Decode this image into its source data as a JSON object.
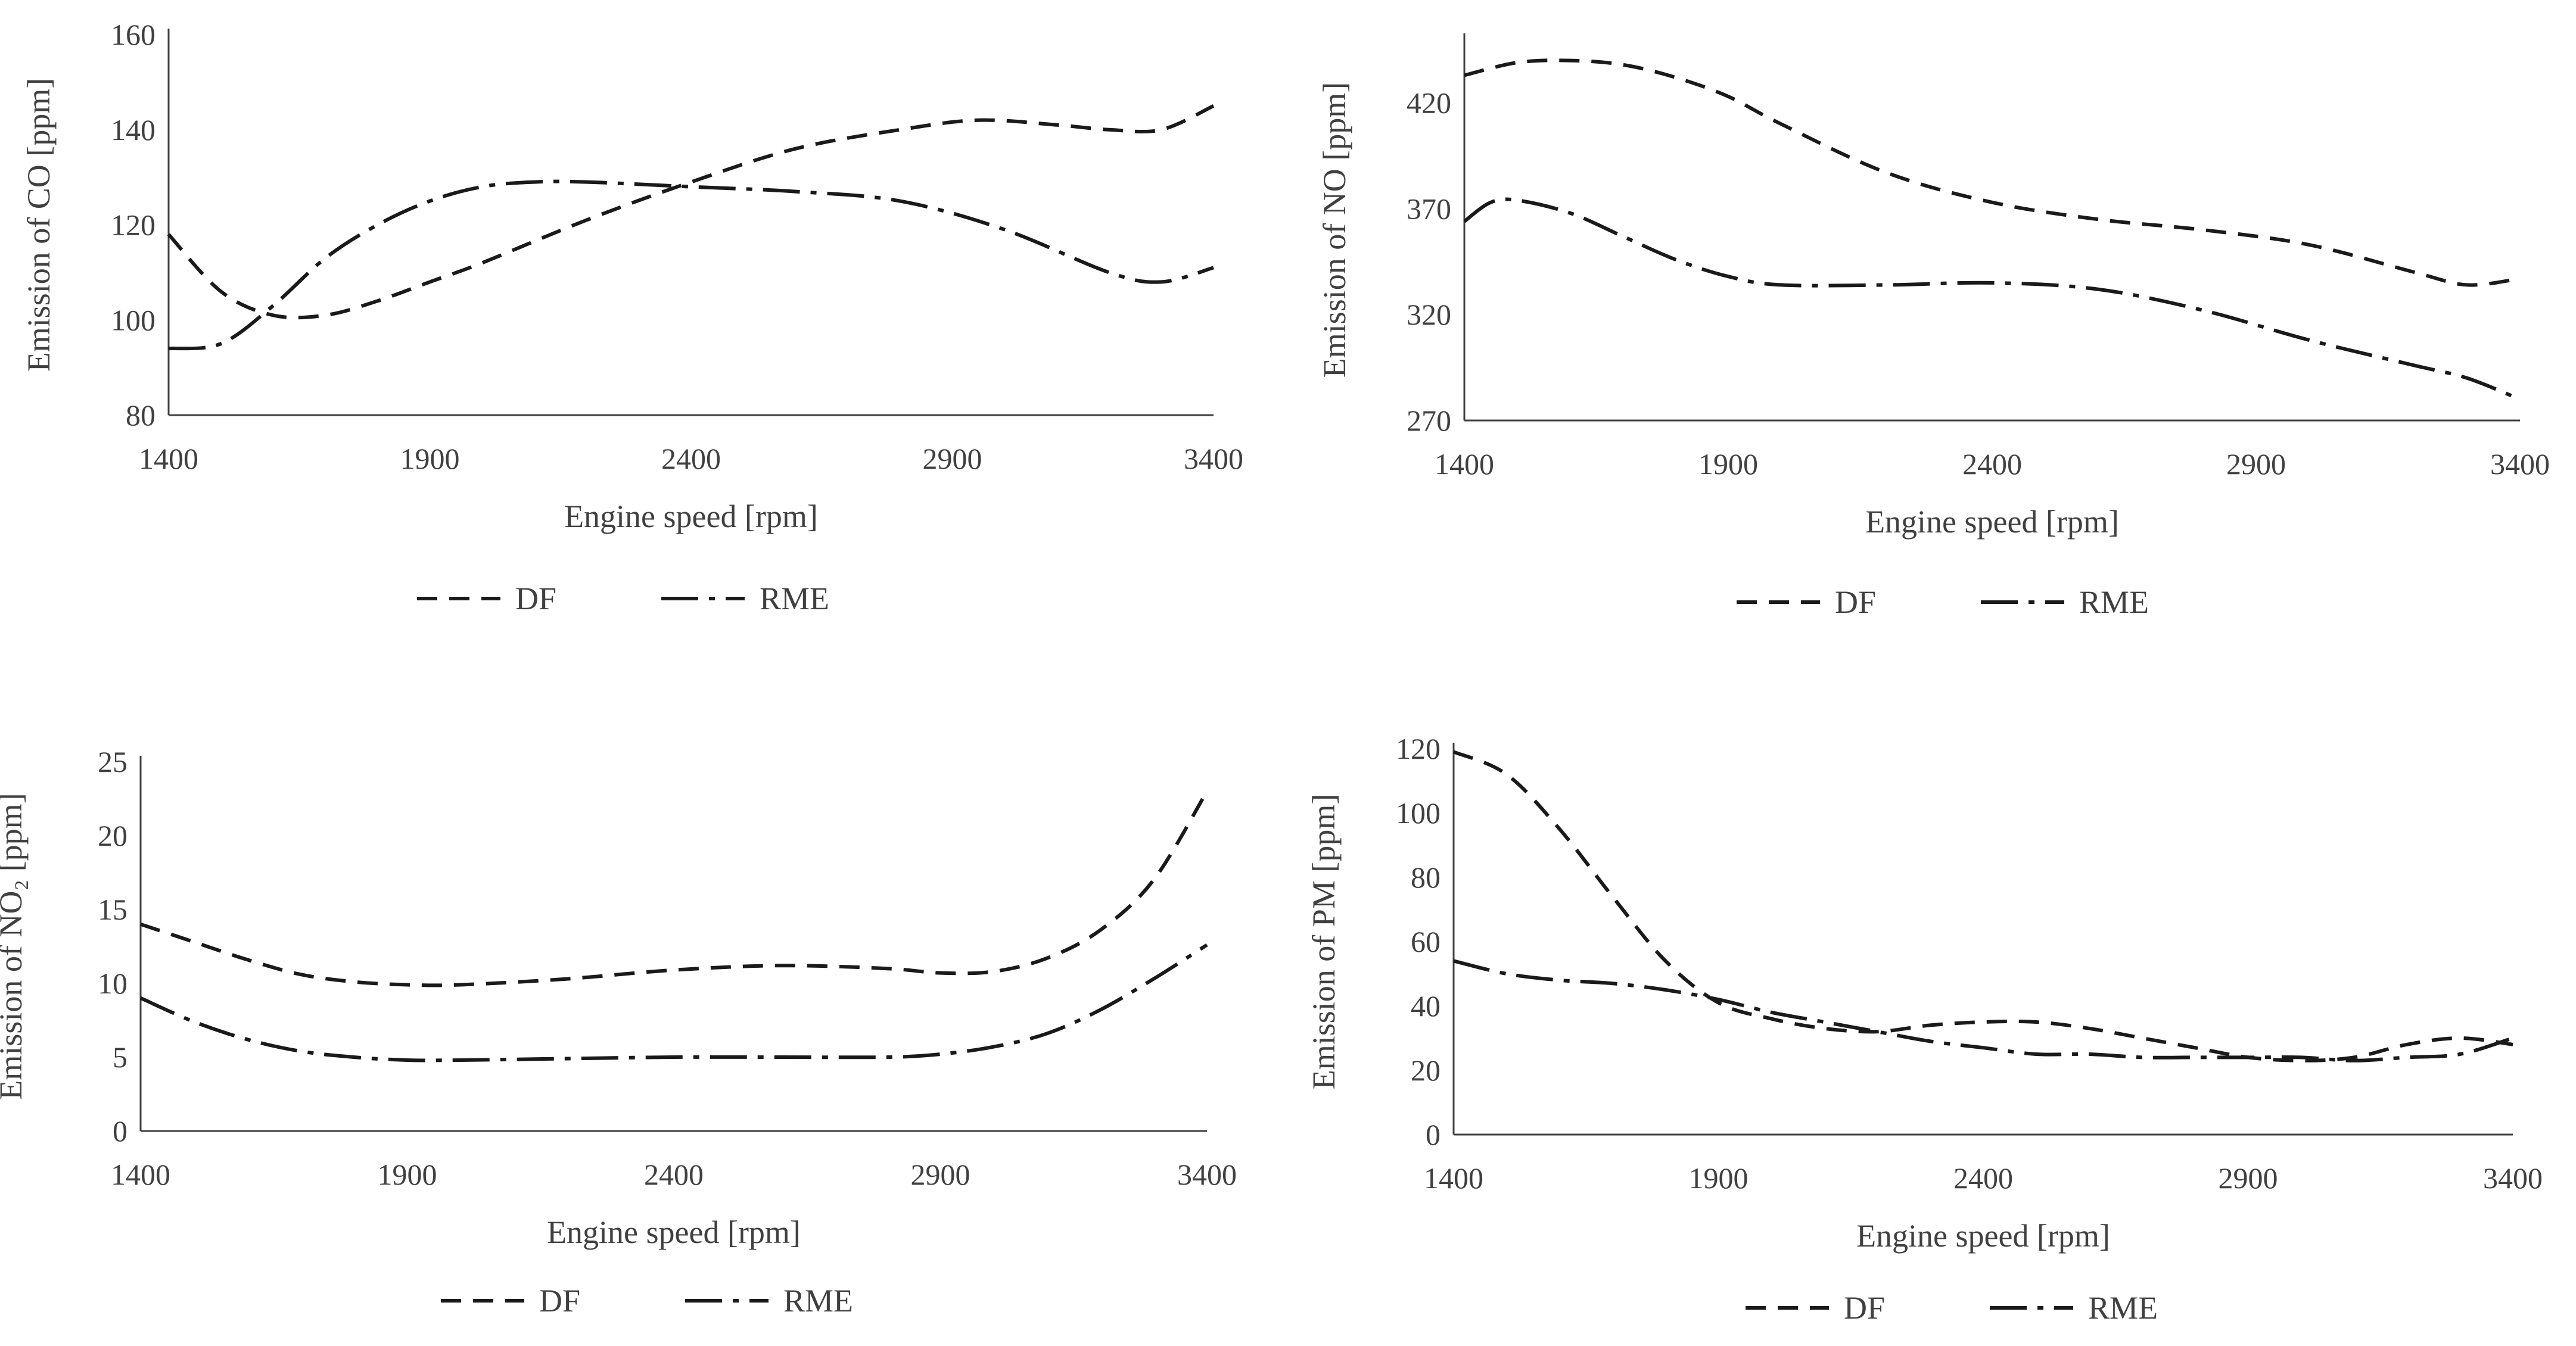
{
  "chart_data": [
    {
      "id": "co",
      "type": "line",
      "ylabel": "Emission of CO [ppm]",
      "xlabel": "Engine speed [rpm]",
      "xlim": [
        1400,
        3400
      ],
      "ylim": [
        80,
        160
      ],
      "xticks": [
        1400,
        1900,
        2400,
        2900,
        3400
      ],
      "yticks": [
        80,
        100,
        120,
        140,
        160
      ],
      "series": [
        {
          "name": "DF",
          "x": [
            1400,
            1500,
            1600,
            1700,
            1800,
            1900,
            2000,
            2200,
            2400,
            2600,
            2800,
            2950,
            3100,
            3200,
            3300,
            3400
          ],
          "values": [
            118,
            106,
            101,
            101,
            104,
            108,
            112,
            121,
            129,
            136,
            140,
            142,
            141,
            140,
            140,
            145
          ]
        },
        {
          "name": "RME",
          "x": [
            1400,
            1500,
            1600,
            1700,
            1800,
            1900,
            2000,
            2100,
            2200,
            2400,
            2600,
            2800,
            3000,
            3200,
            3300,
            3400
          ],
          "values": [
            94,
            95,
            103,
            113,
            120,
            125,
            128,
            129,
            129,
            128,
            127,
            125,
            119,
            110,
            108,
            111
          ]
        }
      ]
    },
    {
      "id": "no",
      "type": "line",
      "ylabel": "Emission of NO [ppm]",
      "xlabel": "Engine speed [rpm]",
      "xlim": [
        1400,
        3400
      ],
      "ylim": [
        270,
        450
      ],
      "xticks": [
        1400,
        1900,
        2400,
        2900,
        3400
      ],
      "yticks": [
        270,
        320,
        370,
        420
      ],
      "series": [
        {
          "name": "DF",
          "x": [
            1400,
            1500,
            1600,
            1700,
            1800,
            1900,
            2000,
            2200,
            2400,
            2600,
            2800,
            3000,
            3200,
            3300,
            3400
          ],
          "values": [
            433,
            439,
            440,
            438,
            432,
            423,
            410,
            387,
            373,
            365,
            360,
            353,
            340,
            334,
            337
          ]
        },
        {
          "name": "RME",
          "x": [
            1400,
            1450,
            1500,
            1600,
            1700,
            1800,
            1900,
            2000,
            2200,
            2400,
            2600,
            2800,
            3000,
            3200,
            3300,
            3400
          ],
          "values": [
            364,
            373,
            374,
            368,
            357,
            346,
            338,
            334,
            334,
            335,
            332,
            322,
            308,
            296,
            290,
            280
          ]
        }
      ]
    },
    {
      "id": "no2",
      "type": "line",
      "ylabel": "Emission of NO₂ [ppm]",
      "xlabel": "Engine speed [rpm]",
      "xlim": [
        1400,
        3400
      ],
      "ylim": [
        0,
        25
      ],
      "xticks": [
        1400,
        1900,
        2400,
        2900,
        3400
      ],
      "yticks": [
        0,
        5,
        10,
        15,
        20,
        25
      ],
      "series": [
        {
          "name": "DF",
          "x": [
            1400,
            1500,
            1600,
            1700,
            1800,
            1900,
            2000,
            2200,
            2400,
            2600,
            2800,
            2900,
            3000,
            3100,
            3200,
            3300,
            3400
          ],
          "values": [
            14,
            12.8,
            11.6,
            10.6,
            10.1,
            9.9,
            9.9,
            10.3,
            10.9,
            11.2,
            11,
            10.7,
            10.8,
            11.7,
            13.6,
            17,
            23
          ]
        },
        {
          "name": "RME",
          "x": [
            1400,
            1500,
            1600,
            1700,
            1800,
            1900,
            2000,
            2200,
            2400,
            2600,
            2800,
            2900,
            3000,
            3100,
            3200,
            3300,
            3400
          ],
          "values": [
            9,
            7.4,
            6.2,
            5.4,
            5,
            4.8,
            4.8,
            4.9,
            5,
            5,
            5,
            5.2,
            5.7,
            6.6,
            8.2,
            10.3,
            12.6
          ]
        }
      ]
    },
    {
      "id": "pm",
      "type": "line",
      "ylabel": "Emission of PM [ppm]",
      "xlabel": "Engine speed [rpm]",
      "xlim": [
        1400,
        3400
      ],
      "ylim": [
        0,
        120
      ],
      "xticks": [
        1400,
        1900,
        2400,
        2900,
        3400
      ],
      "yticks": [
        0,
        20,
        40,
        60,
        80,
        100,
        120
      ],
      "series": [
        {
          "name": "DF",
          "x": [
            1400,
            1500,
            1600,
            1700,
            1800,
            1900,
            2000,
            2100,
            2200,
            2300,
            2400,
            2500,
            2600,
            2700,
            2800,
            2900,
            3000,
            3100,
            3200,
            3300,
            3400
          ],
          "values": [
            119,
            112,
            95,
            74,
            54,
            41,
            36,
            33,
            32,
            34,
            35,
            35,
            33,
            30,
            27,
            24,
            23,
            24,
            28,
            30,
            28
          ]
        },
        {
          "name": "RME",
          "x": [
            1400,
            1500,
            1600,
            1700,
            1800,
            1900,
            2000,
            2100,
            2200,
            2300,
            2400,
            2500,
            2600,
            2700,
            2800,
            2900,
            3000,
            3100,
            3200,
            3300,
            3400
          ],
          "values": [
            54,
            50,
            48,
            47,
            45,
            42,
            38,
            35,
            32,
            29,
            27,
            25,
            25,
            24,
            24,
            24,
            24,
            23,
            24,
            25,
            30
          ]
        }
      ]
    }
  ],
  "legend": {
    "df_label": "DF",
    "rme_label": "RME"
  },
  "colors": {
    "line": "#1a1a1a",
    "axis": "#404040",
    "text": "#404040"
  }
}
